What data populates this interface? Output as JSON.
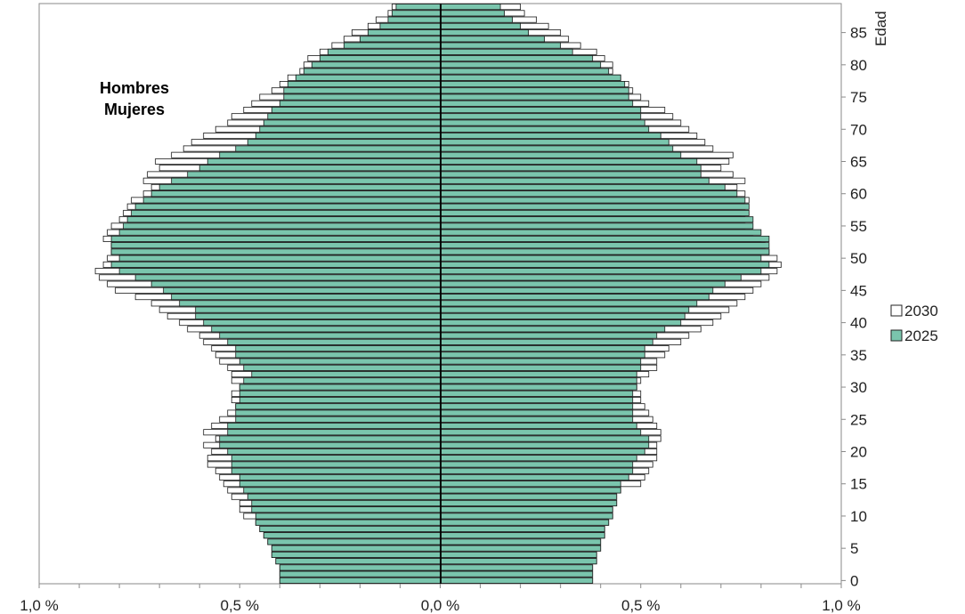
{
  "chart_data": {
    "type": "bar",
    "orientation": "horizontal",
    "chart_kind": "population-pyramid",
    "title": "",
    "xlabel": "",
    "ylabel": "Edad",
    "annotations": [
      "Hombres",
      "Mujeres"
    ],
    "x_ticks": [
      "1,0 %",
      "0,5 %",
      "0,0 %",
      "0,5 %",
      "1,0 %"
    ],
    "xlim": [
      -1.0,
      1.0
    ],
    "ylim": [
      0,
      89
    ],
    "y_ticks": [
      "0",
      "5",
      "10",
      "15",
      "20",
      "25",
      "30",
      "35",
      "40",
      "45",
      "50",
      "55",
      "60",
      "65",
      "70",
      "75",
      "80",
      "85"
    ],
    "grid": false,
    "legend_position": "right",
    "legend": [
      {
        "name": "2030",
        "color": "#ffffff"
      },
      {
        "name": "2025",
        "color": "#7ac5ad"
      }
    ],
    "ages": [
      0,
      1,
      2,
      3,
      4,
      5,
      6,
      7,
      8,
      9,
      10,
      11,
      12,
      13,
      14,
      15,
      16,
      17,
      18,
      19,
      20,
      21,
      22,
      23,
      24,
      25,
      26,
      27,
      28,
      29,
      30,
      31,
      32,
      33,
      34,
      35,
      36,
      37,
      38,
      39,
      40,
      41,
      42,
      43,
      44,
      45,
      46,
      47,
      48,
      49,
      50,
      51,
      52,
      53,
      54,
      55,
      56,
      57,
      58,
      59,
      60,
      61,
      62,
      63,
      64,
      65,
      66,
      67,
      68,
      69,
      70,
      71,
      72,
      73,
      74,
      75,
      76,
      77,
      78,
      79,
      80,
      81,
      82,
      83,
      84,
      85,
      86,
      87,
      88,
      89
    ],
    "series": [
      {
        "name": "2025",
        "color": "#7ac5ad",
        "hombres": [
          0.4,
          0.4,
          0.4,
          0.41,
          0.42,
          0.42,
          0.43,
          0.44,
          0.45,
          0.46,
          0.46,
          0.47,
          0.47,
          0.48,
          0.49,
          0.5,
          0.5,
          0.52,
          0.52,
          0.52,
          0.53,
          0.55,
          0.55,
          0.53,
          0.53,
          0.51,
          0.51,
          0.51,
          0.5,
          0.5,
          0.5,
          0.49,
          0.47,
          0.49,
          0.5,
          0.51,
          0.51,
          0.53,
          0.55,
          0.57,
          0.59,
          0.61,
          0.61,
          0.65,
          0.67,
          0.69,
          0.72,
          0.76,
          0.8,
          0.82,
          0.8,
          0.82,
          0.82,
          0.82,
          0.8,
          0.79,
          0.78,
          0.77,
          0.76,
          0.74,
          0.72,
          0.7,
          0.67,
          0.63,
          0.6,
          0.58,
          0.55,
          0.51,
          0.48,
          0.46,
          0.45,
          0.44,
          0.43,
          0.42,
          0.4,
          0.39,
          0.39,
          0.38,
          0.36,
          0.34,
          0.32,
          0.3,
          0.28,
          0.24,
          0.2,
          0.18,
          0.15,
          0.13,
          0.12,
          0.11
        ],
        "mujeres": [
          0.38,
          0.38,
          0.38,
          0.39,
          0.39,
          0.4,
          0.4,
          0.41,
          0.41,
          0.42,
          0.43,
          0.43,
          0.44,
          0.44,
          0.45,
          0.45,
          0.47,
          0.48,
          0.48,
          0.49,
          0.51,
          0.52,
          0.52,
          0.5,
          0.49,
          0.48,
          0.48,
          0.48,
          0.48,
          0.48,
          0.49,
          0.49,
          0.49,
          0.5,
          0.5,
          0.51,
          0.51,
          0.53,
          0.54,
          0.56,
          0.6,
          0.61,
          0.62,
          0.64,
          0.67,
          0.68,
          0.71,
          0.75,
          0.8,
          0.82,
          0.8,
          0.82,
          0.82,
          0.82,
          0.8,
          0.78,
          0.78,
          0.77,
          0.77,
          0.76,
          0.74,
          0.71,
          0.67,
          0.65,
          0.65,
          0.64,
          0.6,
          0.58,
          0.57,
          0.55,
          0.52,
          0.51,
          0.5,
          0.5,
          0.48,
          0.47,
          0.47,
          0.46,
          0.45,
          0.42,
          0.4,
          0.38,
          0.33,
          0.3,
          0.26,
          0.22,
          0.2,
          0.18,
          0.16,
          0.15
        ]
      },
      {
        "name": "2030",
        "color": "#ffffff",
        "hombres": [
          0.4,
          0.4,
          0.4,
          0.41,
          0.42,
          0.42,
          0.43,
          0.44,
          0.45,
          0.46,
          0.49,
          0.5,
          0.5,
          0.52,
          0.53,
          0.54,
          0.55,
          0.56,
          0.58,
          0.58,
          0.57,
          0.59,
          0.56,
          0.59,
          0.57,
          0.55,
          0.53,
          0.51,
          0.52,
          0.52,
          0.5,
          0.52,
          0.52,
          0.53,
          0.55,
          0.56,
          0.57,
          0.59,
          0.6,
          0.63,
          0.65,
          0.68,
          0.7,
          0.72,
          0.76,
          0.81,
          0.83,
          0.85,
          0.86,
          0.84,
          0.83,
          0.82,
          0.82,
          0.84,
          0.83,
          0.82,
          0.8,
          0.79,
          0.78,
          0.77,
          0.74,
          0.72,
          0.74,
          0.73,
          0.7,
          0.71,
          0.67,
          0.64,
          0.62,
          0.59,
          0.56,
          0.53,
          0.52,
          0.49,
          0.47,
          0.45,
          0.42,
          0.4,
          0.38,
          0.35,
          0.34,
          0.33,
          0.3,
          0.27,
          0.24,
          0.22,
          0.18,
          0.16,
          0.13,
          0.12
        ],
        "mujeres": [
          0.38,
          0.38,
          0.38,
          0.39,
          0.39,
          0.4,
          0.4,
          0.41,
          0.41,
          0.42,
          0.43,
          0.43,
          0.44,
          0.44,
          0.45,
          0.5,
          0.51,
          0.52,
          0.53,
          0.54,
          0.54,
          0.54,
          0.55,
          0.55,
          0.54,
          0.53,
          0.52,
          0.51,
          0.5,
          0.5,
          0.49,
          0.5,
          0.52,
          0.54,
          0.54,
          0.56,
          0.57,
          0.6,
          0.62,
          0.65,
          0.68,
          0.7,
          0.72,
          0.74,
          0.76,
          0.78,
          0.8,
          0.82,
          0.84,
          0.85,
          0.84,
          0.82,
          0.81,
          0.8,
          0.78,
          0.76,
          0.76,
          0.75,
          0.76,
          0.77,
          0.76,
          0.74,
          0.76,
          0.73,
          0.7,
          0.72,
          0.73,
          0.68,
          0.66,
          0.64,
          0.62,
          0.6,
          0.58,
          0.56,
          0.52,
          0.5,
          0.48,
          0.47,
          0.45,
          0.43,
          0.43,
          0.41,
          0.39,
          0.35,
          0.32,
          0.3,
          0.27,
          0.24,
          0.21,
          0.2
        ]
      }
    ]
  }
}
